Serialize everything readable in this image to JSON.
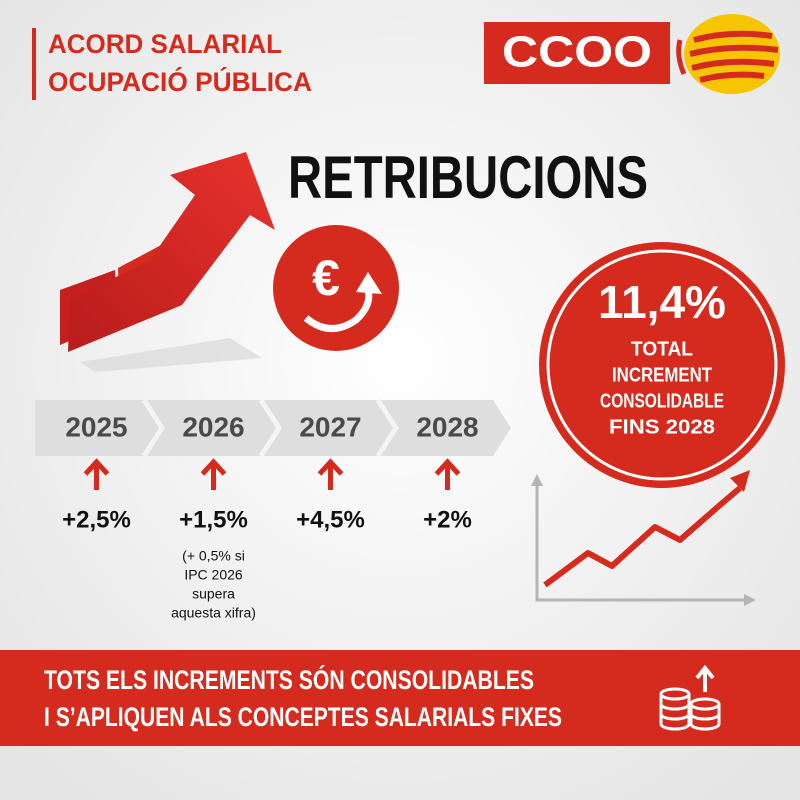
{
  "header": {
    "title_lines": [
      "ACORD SALARIAL",
      "OCUPACIÓ PÚBLICA"
    ],
    "logo": "CCOO"
  },
  "main_title": "RETRIBUCIONS",
  "euro_icon": "€",
  "total": {
    "value": "11,4%",
    "lines": [
      "TOTAL",
      "INCREMENT",
      "CONSOLIDABLE",
      "FINS 2028"
    ]
  },
  "years": [
    {
      "year": "2025",
      "increase": "+2,5%"
    },
    {
      "year": "2026",
      "increase": "+1,5%",
      "note": [
        "(+ 0,5% si",
        "IPC 2026",
        "supera",
        "aquesta xifra)"
      ]
    },
    {
      "year": "2027",
      "increase": "+4,5%"
    },
    {
      "year": "2028",
      "increase": "+2%"
    }
  ],
  "footer": {
    "lines": [
      "TOTS ELS INCREMENTS SÓN CONSOLIDABLES",
      "I S’APLIQUEN ALS CONCEPTES SALARIALS FIXES"
    ]
  }
}
